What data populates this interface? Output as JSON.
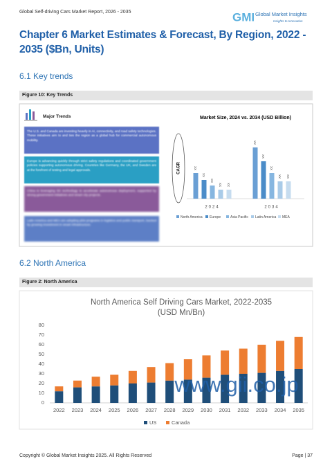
{
  "header": {
    "report_title": "Global Self-driving Cars Market Report, 2026 - 2035",
    "logo": {
      "mark": "GMI",
      "name": "Global Market Insights",
      "tagline": "Insights to Innovation"
    }
  },
  "chapter_title": "Chapter 6  Market Estimates & Forecast, By Region, 2022 - 2035 ($Bn, Units)",
  "sections": [
    {
      "heading": "6.1 Key trends",
      "figure_caption": "Figure 10:  Key Trends",
      "panel": {
        "title": "Major Trends",
        "items": [
          "The U.S. and Canada are investing heavily in AI, connectivity, and road safety technologies. These initiatives aim to and ties the region as a global hub for commercial autonomous mobility.",
          "Europe is advancing quickly through strict safety regulations and coordinated government policies supporting autonomous driving. Countries like Germany, the UK, and Sweden are at the forefront of testing and legal approvals.",
          "China is leveraging 5G technology to accelerate autonomous deployment, supported by strong government initiatives and smart city projects.",
          "Latin America and MEA are adopting pilot programs in logistics and public transport, backed by growing investment in smart infrastructure."
        ]
      }
    },
    {
      "heading": "6.2 North America",
      "figure_caption": "Figure 2:  North America"
    }
  ],
  "chart_data": [
    {
      "type": "bar",
      "title": "Market Size, 2024 vs. 2034 (USD Billion)",
      "annotation": "CAGR",
      "categories": [
        "2024",
        "2034"
      ],
      "series": [
        {
          "name": "North America",
          "color": "#6a9fd4",
          "values": [
            37,
            74
          ],
          "value_labels": [
            "XX",
            "XX"
          ]
        },
        {
          "name": "Europe",
          "color": "#4b8cc8",
          "values": [
            27,
            54
          ],
          "value_labels": [
            "XX",
            "XX"
          ]
        },
        {
          "name": "Asia Pacific",
          "color": "#86b6e0",
          "values": [
            19,
            37
          ],
          "value_labels": [
            "XX",
            "XX"
          ]
        },
        {
          "name": "Latin America",
          "color": "#a9cbe8",
          "values": [
            13,
            25
          ],
          "value_labels": [
            "XX",
            "XX"
          ]
        },
        {
          "name": "MEA",
          "color": "#c6dcef",
          "values": [
            13,
            25
          ],
          "value_labels": [
            "XX",
            "XX"
          ]
        }
      ],
      "legend": "bottom"
    },
    {
      "type": "stacked_bar",
      "title": "North America Self Driving Cars Market, 2022-2035",
      "subtitle": "(USD Mn/Bn)",
      "categories": [
        "2022",
        "2023",
        "2024",
        "2025",
        "2026",
        "2027",
        "2028",
        "2029",
        "2030",
        "2031",
        "2032",
        "2033",
        "2034",
        "2035"
      ],
      "series": [
        {
          "name": "US",
          "color": "#1f4e79",
          "values": [
            12,
            16,
            17,
            18,
            20,
            21,
            23,
            24,
            26,
            29,
            30,
            31,
            33,
            35
          ]
        },
        {
          "name": "Canada",
          "color": "#ed7d31",
          "values": [
            5,
            7,
            10,
            11,
            13,
            16,
            18,
            21,
            23,
            25,
            26,
            29,
            31,
            33
          ]
        }
      ],
      "ylim": [
        0,
        80
      ],
      "yticks": [
        0,
        10,
        20,
        30,
        40,
        50,
        60,
        70,
        80
      ],
      "grid": false,
      "legend": "bottom"
    }
  ],
  "watermark": "www.gii.co.jp",
  "footer": {
    "copyright": "Copyright © Global Market Insights 2025. All Rights Reserved",
    "page": "Page | 37"
  }
}
